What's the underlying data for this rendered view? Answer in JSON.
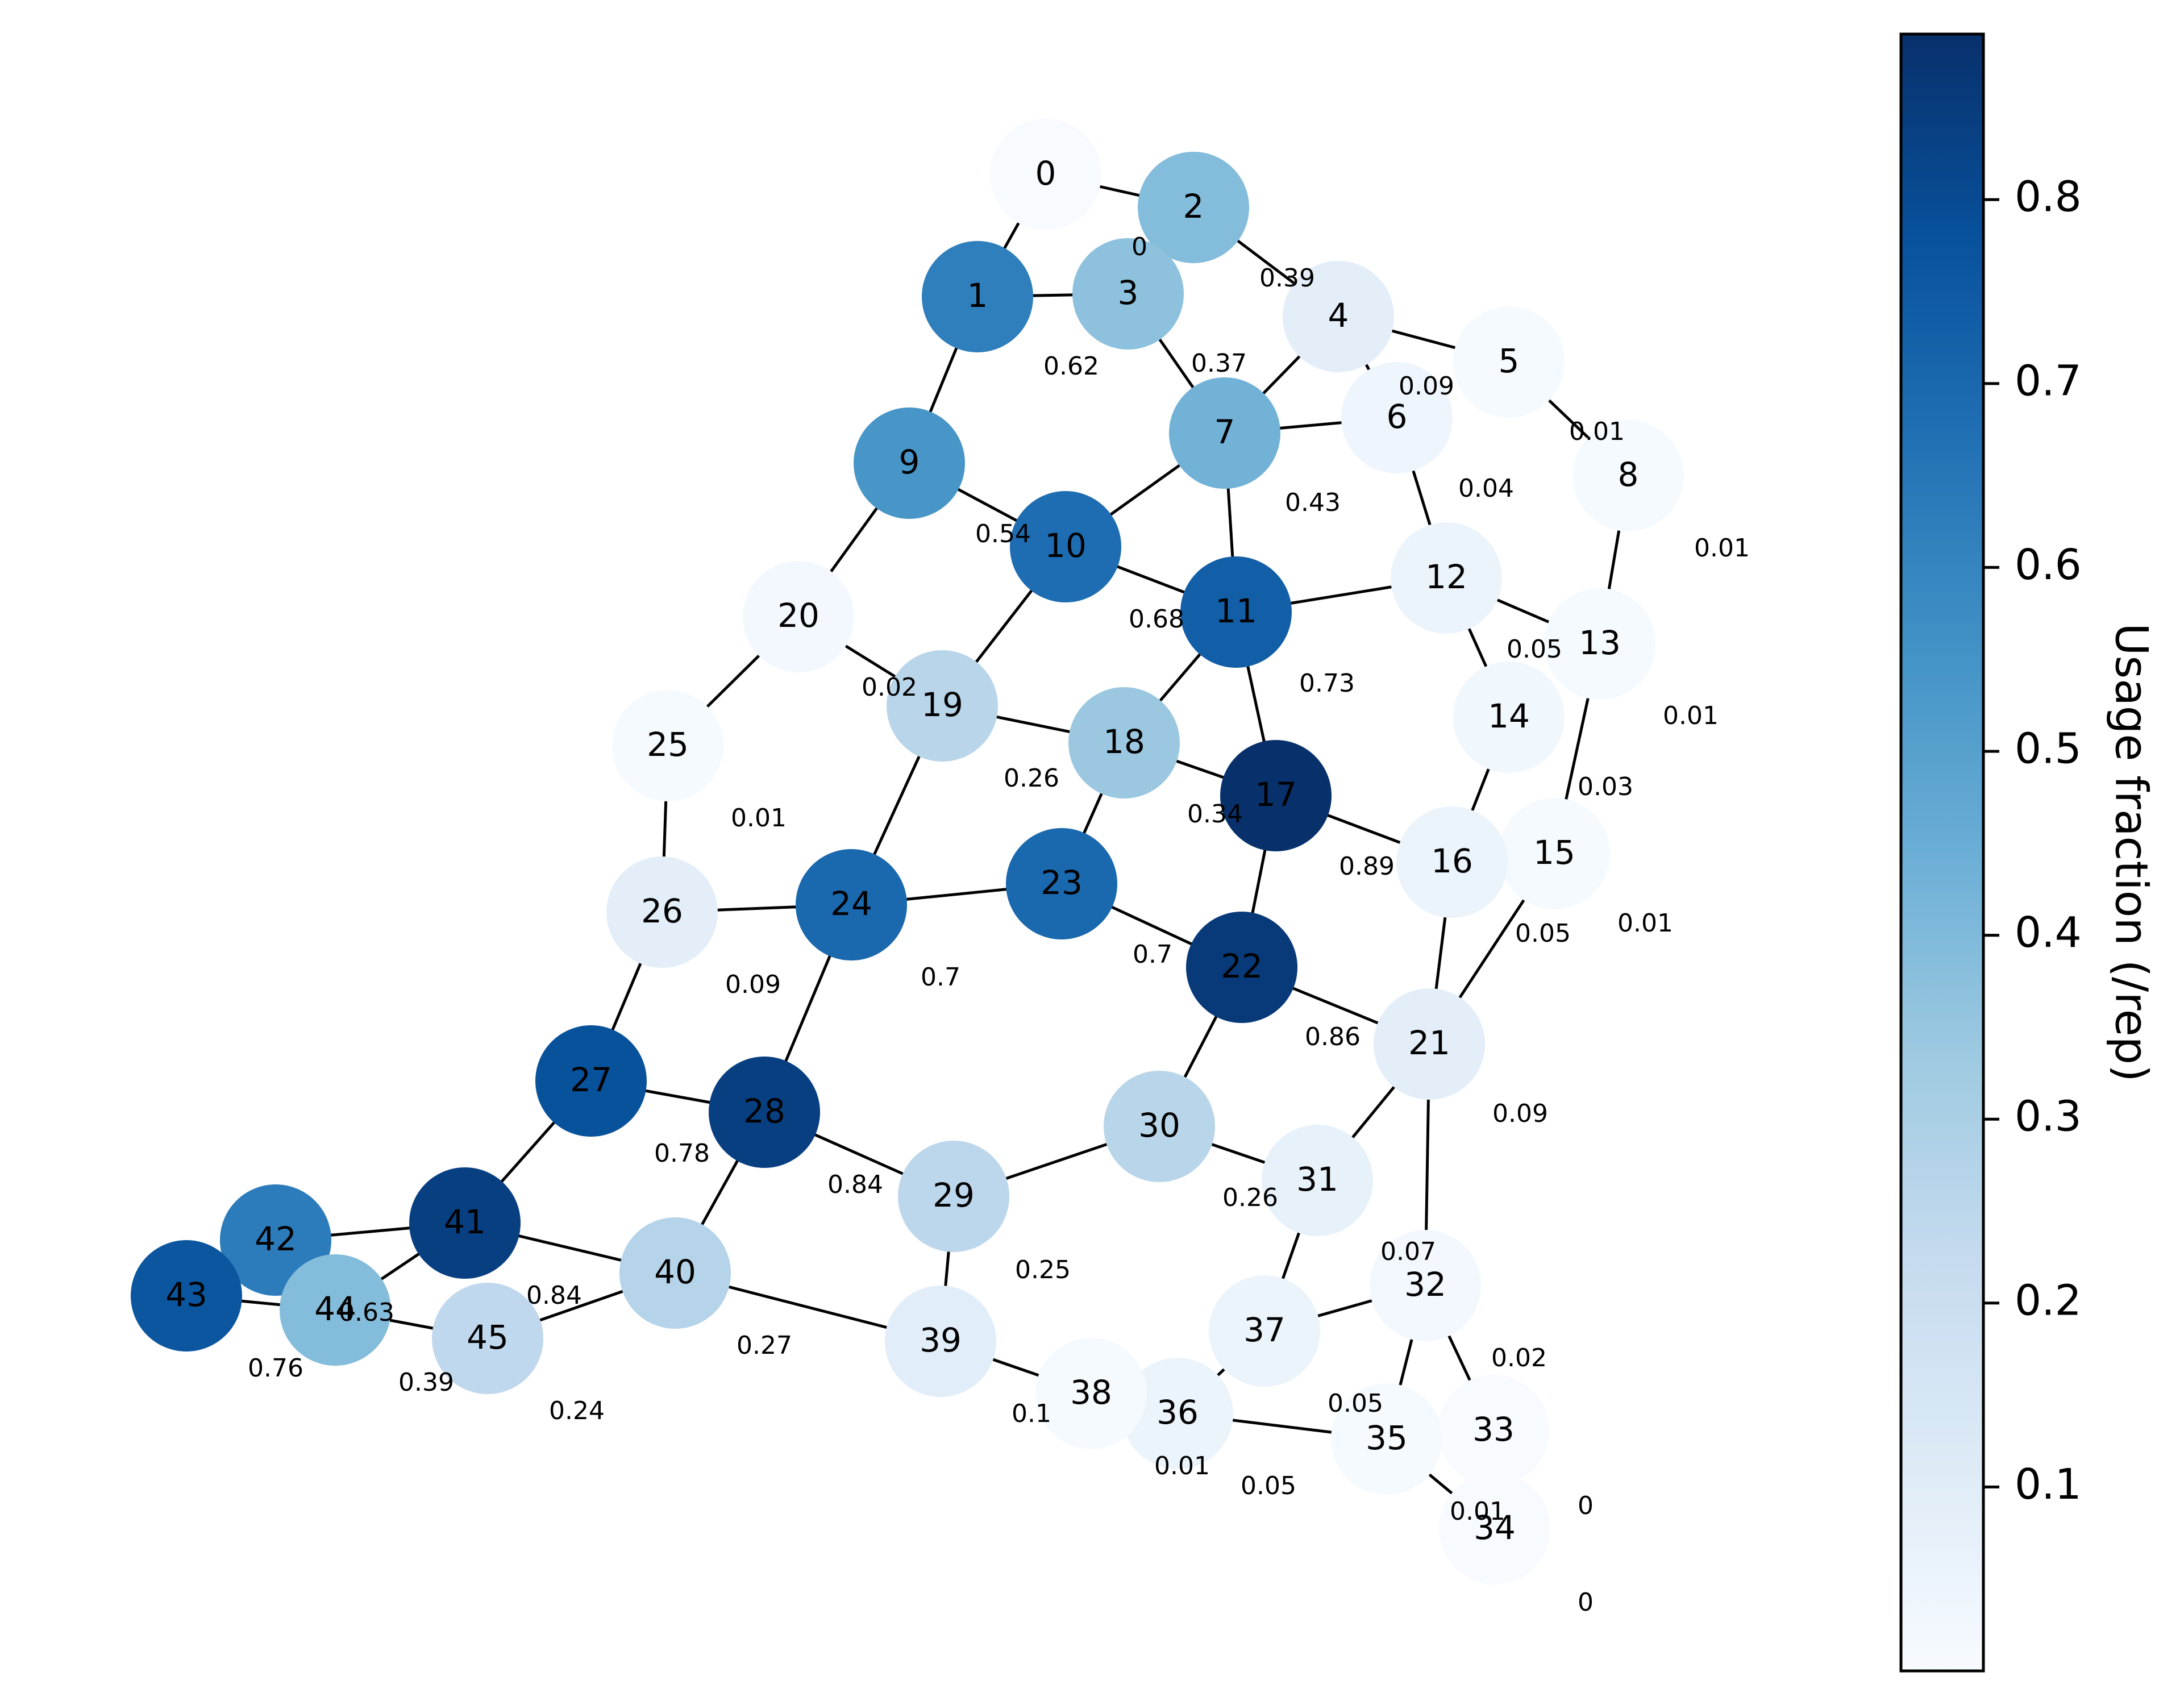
{
  "colorbar": {
    "label": "Usage fraction (/rep)",
    "min": 0.0,
    "max": 0.89,
    "ticks": [
      {
        "value": 0.1,
        "label": "0.1"
      },
      {
        "value": 0.2,
        "label": "0.2"
      },
      {
        "value": 0.3,
        "label": "0.3"
      },
      {
        "value": 0.4,
        "label": "0.4"
      },
      {
        "value": 0.5,
        "label": "0.5"
      },
      {
        "value": 0.6,
        "label": "0.6"
      },
      {
        "value": 0.7,
        "label": "0.7"
      },
      {
        "value": 0.8,
        "label": "0.8"
      }
    ]
  },
  "nodes": [
    {
      "id": "0",
      "label": "0",
      "usage": 0.0
    },
    {
      "id": "1",
      "label": "1",
      "usage": 0.62
    },
    {
      "id": "2",
      "label": "2",
      "usage": 0.39
    },
    {
      "id": "3",
      "label": "3",
      "usage": 0.37
    },
    {
      "id": "4",
      "label": "4",
      "usage": 0.09
    },
    {
      "id": "5",
      "label": "5",
      "usage": 0.01
    },
    {
      "id": "6",
      "label": "6",
      "usage": 0.04
    },
    {
      "id": "7",
      "label": "7",
      "usage": 0.43
    },
    {
      "id": "8",
      "label": "8",
      "usage": 0.01
    },
    {
      "id": "9",
      "label": "9",
      "usage": 0.54
    },
    {
      "id": "10",
      "label": "10",
      "usage": 0.68
    },
    {
      "id": "11",
      "label": "11",
      "usage": 0.73
    },
    {
      "id": "12",
      "label": "12",
      "usage": 0.05
    },
    {
      "id": "13",
      "label": "13",
      "usage": 0.01
    },
    {
      "id": "14",
      "label": "14",
      "usage": 0.03
    },
    {
      "id": "15",
      "label": "15",
      "usage": 0.01
    },
    {
      "id": "16",
      "label": "16",
      "usage": 0.05
    },
    {
      "id": "17",
      "label": "17",
      "usage": 0.89
    },
    {
      "id": "18",
      "label": "18",
      "usage": 0.34
    },
    {
      "id": "19",
      "label": "19",
      "usage": 0.26
    },
    {
      "id": "20",
      "label": "20",
      "usage": 0.02
    },
    {
      "id": "21",
      "label": "21",
      "usage": 0.09
    },
    {
      "id": "22",
      "label": "22",
      "usage": 0.86
    },
    {
      "id": "23",
      "label": "23",
      "usage": 0.7
    },
    {
      "id": "24",
      "label": "24",
      "usage": 0.7
    },
    {
      "id": "25",
      "label": "25",
      "usage": 0.01
    },
    {
      "id": "26",
      "label": "26",
      "usage": 0.09
    },
    {
      "id": "27",
      "label": "27",
      "usage": 0.78
    },
    {
      "id": "28",
      "label": "28",
      "usage": 0.84
    },
    {
      "id": "29",
      "label": "29",
      "usage": 0.25
    },
    {
      "id": "30",
      "label": "30",
      "usage": 0.26
    },
    {
      "id": "31",
      "label": "31",
      "usage": 0.07
    },
    {
      "id": "32",
      "label": "32",
      "usage": 0.02
    },
    {
      "id": "33",
      "label": "33",
      "usage": 0.0
    },
    {
      "id": "34",
      "label": "34",
      "usage": 0.0
    },
    {
      "id": "35",
      "label": "35",
      "usage": 0.01
    },
    {
      "id": "36",
      "label": "36",
      "usage": 0.05
    },
    {
      "id": "37",
      "label": "37",
      "usage": 0.05
    },
    {
      "id": "38",
      "label": "38",
      "usage": 0.01
    },
    {
      "id": "39",
      "label": "39",
      "usage": 0.1
    },
    {
      "id": "40",
      "label": "40",
      "usage": 0.27
    },
    {
      "id": "41",
      "label": "41",
      "usage": 0.84
    },
    {
      "id": "42",
      "label": "42",
      "usage": 0.63
    },
    {
      "id": "43",
      "label": "43",
      "usage": 0.76
    },
    {
      "id": "44",
      "label": "44",
      "usage": 0.39
    },
    {
      "id": "45",
      "label": "45",
      "usage": 0.24
    }
  ],
  "edges": [
    [
      "0",
      "1"
    ],
    [
      "0",
      "2"
    ],
    [
      "1",
      "3"
    ],
    [
      "1",
      "9"
    ],
    [
      "2",
      "4"
    ],
    [
      "3",
      "7"
    ],
    [
      "4",
      "5"
    ],
    [
      "4",
      "7"
    ],
    [
      "4",
      "6"
    ],
    [
      "5",
      "8"
    ],
    [
      "6",
      "12"
    ],
    [
      "7",
      "6"
    ],
    [
      "7",
      "10"
    ],
    [
      "7",
      "11"
    ],
    [
      "8",
      "13"
    ],
    [
      "9",
      "10"
    ],
    [
      "9",
      "20"
    ],
    [
      "10",
      "11"
    ],
    [
      "10",
      "19"
    ],
    [
      "11",
      "12"
    ],
    [
      "11",
      "18"
    ],
    [
      "11",
      "17"
    ],
    [
      "12",
      "13"
    ],
    [
      "12",
      "14"
    ],
    [
      "13",
      "15"
    ],
    [
      "14",
      "16"
    ],
    [
      "15",
      "21"
    ],
    [
      "16",
      "21"
    ],
    [
      "17",
      "16"
    ],
    [
      "17",
      "22"
    ],
    [
      "18",
      "17"
    ],
    [
      "18",
      "23"
    ],
    [
      "19",
      "18"
    ],
    [
      "19",
      "24"
    ],
    [
      "20",
      "19"
    ],
    [
      "20",
      "25"
    ],
    [
      "21",
      "32"
    ],
    [
      "22",
      "21"
    ],
    [
      "22",
      "30"
    ],
    [
      "23",
      "22"
    ],
    [
      "24",
      "23"
    ],
    [
      "24",
      "28"
    ],
    [
      "25",
      "26"
    ],
    [
      "26",
      "24"
    ],
    [
      "26",
      "27"
    ],
    [
      "27",
      "28"
    ],
    [
      "27",
      "41"
    ],
    [
      "28",
      "29"
    ],
    [
      "28",
      "40"
    ],
    [
      "29",
      "30"
    ],
    [
      "29",
      "39"
    ],
    [
      "30",
      "31"
    ],
    [
      "31",
      "21"
    ],
    [
      "31",
      "37"
    ],
    [
      "32",
      "33"
    ],
    [
      "32",
      "35"
    ],
    [
      "35",
      "34"
    ],
    [
      "36",
      "35"
    ],
    [
      "37",
      "32"
    ],
    [
      "37",
      "36"
    ],
    [
      "38",
      "36"
    ],
    [
      "39",
      "38"
    ],
    [
      "40",
      "39"
    ],
    [
      "40",
      "45"
    ],
    [
      "41",
      "40"
    ],
    [
      "41",
      "44"
    ],
    [
      "41",
      "42"
    ],
    [
      "43",
      "44"
    ],
    [
      "44",
      "45"
    ]
  ]
}
